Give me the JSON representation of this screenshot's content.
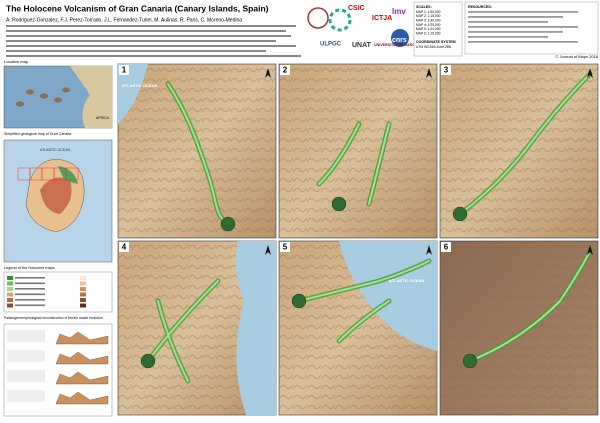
{
  "header": {
    "title": "The Holocene Volcanism of Gran Canaria (Canary Islands, Spain)",
    "authors": "A. Rodriguez-Gonzalez, F.J. Perez-Torrado, J.L. Fernandez-Turiel, M. Aulinas, R. Paris, C. Moreno-Medina",
    "copyright": "© Journal of Maps 2018"
  },
  "logos": [
    "CSIC",
    "ICTJA",
    "ULPGC",
    "UNAT",
    "UNIVERSITAT DE BARCELONA",
    "lmv",
    "cnrs"
  ],
  "scales": {
    "title": "SCALES:",
    "items": [
      "MAP 1: 1:50,000",
      "MAP 2: 1:15,000",
      "MAP 3: 1:40,000",
      "MAP 4: 1:25,000",
      "MAP 5: 1:24,000",
      "MAP 6: 1:15,000"
    ],
    "crs_title": "COORDINATE SYSTEM",
    "crs": "UTM WGS84 Zone 28N"
  },
  "resources": {
    "title": "RESOURCES:"
  },
  "sidebar": {
    "location": "Location map",
    "africa": "AFRICA",
    "geology": "Simplified geological map of Gran Canaria",
    "ocean": "ATLANTIC OCEAN",
    "legend": "Legend of the Holocene maps",
    "evolution": "Palaeogeomorphological reconstruction of terrain model evolution"
  },
  "panels": [
    {
      "number": "1",
      "label": "ATLANTIC OCEAN"
    },
    {
      "number": "2"
    },
    {
      "number": "3"
    },
    {
      "number": "4"
    },
    {
      "number": "5",
      "label": "ATLANTIC OCEAN"
    },
    {
      "number": "6"
    }
  ]
}
